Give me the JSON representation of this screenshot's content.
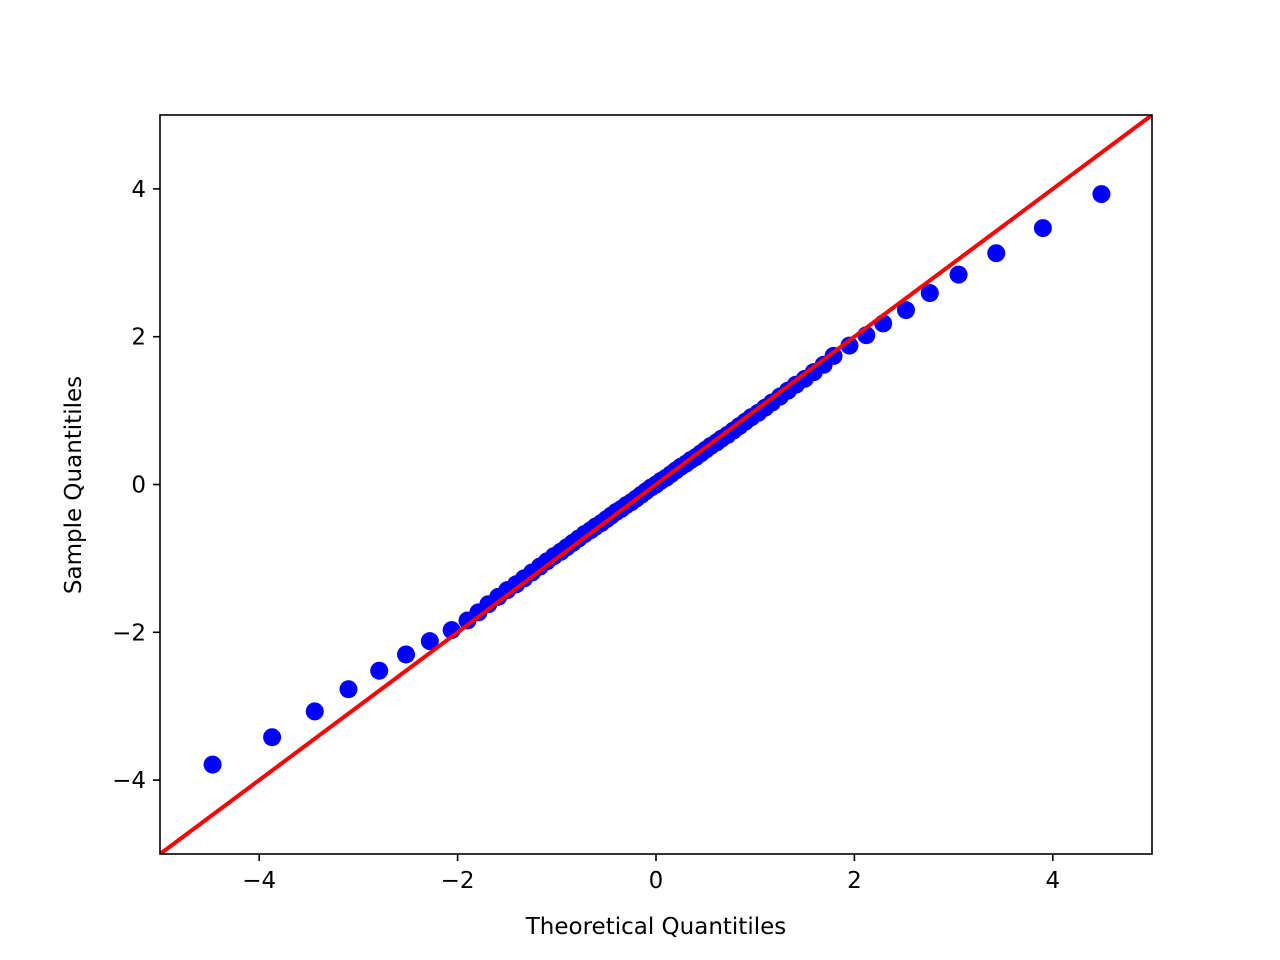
{
  "chart_data": {
    "type": "scatter",
    "title": "",
    "xlabel": "Theoretical Quantitiles",
    "ylabel": "Sample Quantitiles",
    "xlim": [
      -5,
      5
    ],
    "ylim": [
      -5,
      5
    ],
    "x_ticks": [
      -4,
      -2,
      0,
      2,
      4
    ],
    "y_ticks": [
      -4,
      -2,
      0,
      2,
      4
    ],
    "x_tick_labels": [
      "−4",
      "−2",
      "0",
      "2",
      "4"
    ],
    "y_tick_labels": [
      "−4",
      "−2",
      "0",
      "2",
      "4"
    ],
    "grid": false,
    "reference_line": {
      "points": [
        [
          -5,
          -5
        ],
        [
          5,
          5
        ]
      ],
      "color": "#ff0000"
    },
    "marker_color": "#0000ff",
    "points": [
      [
        -4.47,
        -3.79
      ],
      [
        -3.87,
        -3.42
      ],
      [
        -3.44,
        -3.07
      ],
      [
        -3.1,
        -2.77
      ],
      [
        -2.79,
        -2.52
      ],
      [
        -2.52,
        -2.3
      ],
      [
        -2.28,
        -2.12
      ],
      [
        -2.06,
        -1.97
      ],
      [
        -1.9,
        -1.84
      ],
      [
        -1.79,
        -1.73
      ],
      [
        -1.69,
        -1.62
      ],
      [
        -1.59,
        -1.52
      ],
      [
        -1.5,
        -1.43
      ],
      [
        -1.41,
        -1.35
      ],
      [
        -1.33,
        -1.27
      ],
      [
        -1.25,
        -1.19
      ],
      [
        -1.17,
        -1.11
      ],
      [
        -1.1,
        -1.04
      ],
      [
        -1.03,
        -0.97
      ],
      [
        -0.96,
        -0.91
      ],
      [
        -0.9,
        -0.85
      ],
      [
        -0.84,
        -0.79
      ],
      [
        -0.78,
        -0.73
      ],
      [
        -0.72,
        -0.67
      ],
      [
        -0.66,
        -0.62
      ],
      [
        -0.61,
        -0.57
      ],
      [
        -0.55,
        -0.52
      ],
      [
        -0.5,
        -0.47
      ],
      [
        -0.45,
        -0.42
      ],
      [
        -0.4,
        -0.37
      ],
      [
        -0.35,
        -0.33
      ],
      [
        -0.3,
        -0.28
      ],
      [
        -0.25,
        -0.24
      ],
      [
        -0.2,
        -0.19
      ],
      [
        -0.15,
        -0.14
      ],
      [
        -0.1,
        -0.09
      ],
      [
        -0.05,
        -0.04
      ],
      [
        0.0,
        0.0
      ],
      [
        0.05,
        0.05
      ],
      [
        0.1,
        0.09
      ],
      [
        0.15,
        0.14
      ],
      [
        0.2,
        0.19
      ],
      [
        0.25,
        0.24
      ],
      [
        0.3,
        0.28
      ],
      [
        0.35,
        0.33
      ],
      [
        0.4,
        0.37
      ],
      [
        0.45,
        0.42
      ],
      [
        0.5,
        0.47
      ],
      [
        0.55,
        0.52
      ],
      [
        0.61,
        0.57
      ],
      [
        0.66,
        0.62
      ],
      [
        0.72,
        0.67
      ],
      [
        0.78,
        0.73
      ],
      [
        0.84,
        0.79
      ],
      [
        0.9,
        0.85
      ],
      [
        0.96,
        0.91
      ],
      [
        1.03,
        0.97
      ],
      [
        1.1,
        1.04
      ],
      [
        1.17,
        1.11
      ],
      [
        1.25,
        1.19
      ],
      [
        1.33,
        1.27
      ],
      [
        1.41,
        1.35
      ],
      [
        1.5,
        1.43
      ],
      [
        1.59,
        1.52
      ],
      [
        1.69,
        1.62
      ],
      [
        1.79,
        1.74
      ],
      [
        1.95,
        1.88
      ],
      [
        2.12,
        2.02
      ],
      [
        2.29,
        2.18
      ],
      [
        2.52,
        2.36
      ],
      [
        2.76,
        2.59
      ],
      [
        3.05,
        2.84
      ],
      [
        3.43,
        3.13
      ],
      [
        3.9,
        3.47
      ],
      [
        4.49,
        3.93
      ]
    ]
  }
}
